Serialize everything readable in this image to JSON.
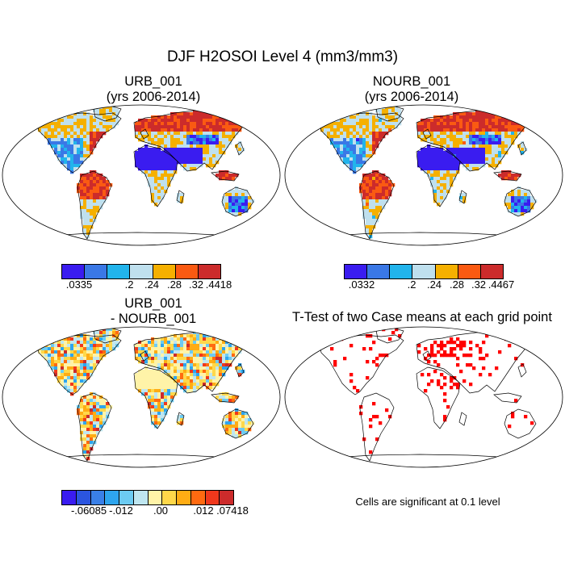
{
  "title": "DJF H2OSOI Level 4 (mm3/mm3)",
  "panels": {
    "urb": {
      "title_line1": "URB_001",
      "title_line2": "(yrs 2006-2014)"
    },
    "nourb": {
      "title_line1": "NOURB_001",
      "title_line2": "(yrs 2006-2014)"
    },
    "diff": {
      "title_line1": "URB_001",
      "title_line2": "- NOURB_001"
    },
    "ttest": {
      "title": "T-Test of two Case means at each grid point",
      "note": "Cells are significant at 0.1 level"
    }
  },
  "colorbars": {
    "urb": {
      "colors": [
        "#3a1cf0",
        "#3a78e6",
        "#22b4ec",
        "#bfe0ee",
        "#f5b000",
        "#fa5a12",
        "#cc2b2b"
      ],
      "labels": [
        ".0335",
        ".2",
        ".24",
        ".28",
        ".32",
        ".4418"
      ]
    },
    "nourb": {
      "colors": [
        "#3a1cf0",
        "#3a78e6",
        "#22b4ec",
        "#bfe0ee",
        "#f5b000",
        "#fa5a12",
        "#cc2b2b"
      ],
      "labels": [
        ".0332",
        ".2",
        ".24",
        ".28",
        ".32",
        ".4467"
      ]
    },
    "diff": {
      "colors": [
        "#3a1cf0",
        "#2b55e0",
        "#3a80e8",
        "#2ea5ee",
        "#6ccbf2",
        "#bfe6f0",
        "#fff3a8",
        "#ffd84a",
        "#ffac14",
        "#ff6a10",
        "#f0381c",
        "#cc2b2b"
      ],
      "labels": [
        "-.06085",
        "-.012",
        ".00",
        ".012",
        ".07418"
      ]
    }
  },
  "chart_data": [
    {
      "type": "heatmap",
      "title": "URB_001",
      "subtitle": "(yrs 2006-2014)",
      "projection": "Robinson",
      "variable": "H2OSOI Level 4 (mm3/mm3)",
      "color_levels": [
        0.0335,
        0.2,
        0.24,
        0.28,
        0.32,
        0.4418
      ]
    },
    {
      "type": "heatmap",
      "title": "NOURB_001",
      "subtitle": "(yrs 2006-2014)",
      "projection": "Robinson",
      "variable": "H2OSOI Level 4 (mm3/mm3)",
      "color_levels": [
        0.0332,
        0.2,
        0.24,
        0.28,
        0.32,
        0.4467
      ]
    },
    {
      "type": "heatmap",
      "title": "URB_001",
      "subtitle": "- NOURB_001",
      "projection": "Robinson",
      "variable": "H2OSOI difference (mm3/mm3)",
      "color_levels": [
        -0.06085,
        -0.012,
        0.0,
        0.012,
        0.07418
      ]
    },
    {
      "type": "heatmap",
      "title": "T-Test of two Case means at each grid point",
      "projection": "Robinson",
      "annotation": "Cells are significant at 0.1 level",
      "marker_color": "#ff0000"
    }
  ]
}
